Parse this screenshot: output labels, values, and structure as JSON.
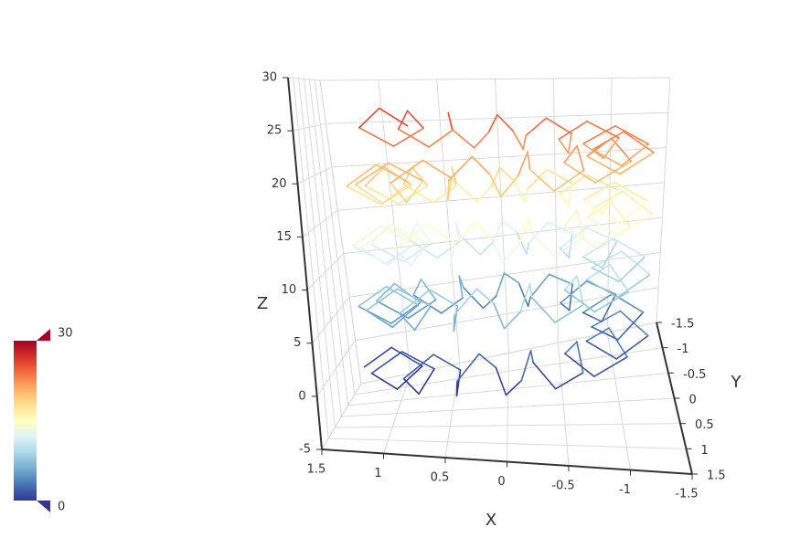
{
  "chart_data": {
    "type": "line3D",
    "xlabel": "X",
    "ylabel": "Y",
    "zlabel": "Z",
    "xlim": [
      -1.5,
      1.5
    ],
    "ylim": [
      -1.5,
      1.5
    ],
    "zlim": [
      -5,
      30
    ],
    "xticks": [
      -1.5,
      -1,
      -0.5,
      0,
      0.5,
      1,
      1.5
    ],
    "yticks": [
      -1.5,
      -1,
      -0.5,
      0,
      0.5,
      1,
      1.5
    ],
    "zticks": [
      -5,
      0,
      5,
      10,
      15,
      20,
      25,
      30
    ],
    "grid": true,
    "visual_map": {
      "min": 0,
      "max": 30,
      "colors": [
        "#313695",
        "#4575b4",
        "#74add1",
        "#abd9e9",
        "#e0f3f8",
        "#ffffbf",
        "#fee090",
        "#fdae61",
        "#f46d43",
        "#d73027",
        "#a50026"
      ]
    },
    "x": [
      1.25,
      0.99,
      0.73,
      0.95,
      1.14,
      0.87,
      0.61,
      0.74,
      0.84,
      0.59,
      0.38,
      0.41,
      0.39,
      0.21,
      0.08,
      0,
      -0.13,
      -0.21,
      -0.23,
      -0.41,
      -0.63,
      -0.59,
      -0.5,
      -0.74,
      -1.01,
      -0.87,
      -0.69,
      -0.95,
      -1.22,
      -0.99,
      -0.75,
      -0.99,
      -1.22,
      -0.95,
      -0.69,
      -0.87,
      -1.01,
      -0.74,
      -0.5,
      -0.59,
      -0.63,
      -0.41,
      -0.23,
      -0.21,
      -0.13,
      0,
      0.08,
      0.21,
      0.39,
      0.41,
      0.38,
      0.59,
      0.84,
      0.74,
      0.61,
      0.87,
      1.14,
      0.95,
      0.73,
      0.99,
      1.25,
      0.99,
      0.73,
      0.95,
      1.14,
      0.87,
      0.61,
      0.74,
      0.84,
      0.59,
      0.38,
      0.41,
      0.39,
      0.21,
      0.08,
      0,
      -0.13,
      -0.21,
      -0.23,
      -0.41,
      -0.63,
      -0.59,
      -0.5,
      -0.74,
      -1.01,
      -0.87,
      -0.69,
      -0.95,
      -1.22,
      -0.99,
      -0.75,
      -0.99,
      -1.22,
      -0.95,
      -0.69,
      -0.87,
      -1.01,
      -0.74,
      -0.5,
      -0.59,
      -0.63,
      -0.41,
      -0.23,
      -0.21,
      -0.13,
      0,
      0.08,
      0.21,
      0.39,
      0.41,
      0.38,
      0.59,
      0.84,
      0.74,
      0.61,
      0.87,
      1.14,
      0.95,
      0.73,
      0.99,
      1.25,
      0.99,
      0.73,
      0.95,
      1.14,
      0.87,
      0.61,
      0.74,
      0.84,
      0.59,
      0.38,
      0.41,
      0.39,
      0.21,
      0.08,
      0,
      -0.13,
      -0.21,
      -0.23,
      -0.41,
      -0.63,
      -0.59,
      -0.5,
      -0.74,
      -1.01,
      -0.87,
      -0.69,
      -0.95,
      -1.22,
      -0.99,
      -0.75,
      -0.99,
      -1.22,
      -0.95,
      -0.69,
      -0.87,
      -1.01,
      -0.74,
      -0.5,
      -0.59,
      -0.63,
      -0.41,
      -0.23,
      -0.21,
      -0.13,
      0,
      0.08,
      0.21,
      0.39,
      0.41,
      0.38,
      0.59,
      0.84,
      0.74,
      0.61,
      0.87,
      1.14,
      0.95,
      0.73,
      0.99,
      1.25,
      0.99,
      0.73,
      0.95,
      1.14,
      0.87,
      0.61,
      0.74,
      0.84,
      0.59,
      0.38,
      0.41,
      0.39,
      0.21,
      0.08,
      0,
      -0.13,
      -0.21,
      -0.23,
      -0.41,
      -0.63,
      -0.59,
      -0.5,
      -0.74,
      -1.01,
      -0.87,
      -0.69,
      -0.95,
      -1.22,
      -0.99,
      -0.75,
      -0.99,
      -1.22,
      -0.95,
      -0.69,
      -0.87,
      -1.01,
      -0.74,
      -0.5,
      -0.59,
      -0.63,
      -0.41,
      -0.23,
      -0.21,
      -0.13,
      0,
      0.08,
      0.21,
      0.39,
      0.41,
      0.38,
      0.59,
      0.84,
      0.74,
      0.61,
      0.87,
      1.14,
      0.95,
      0.73
    ],
    "y": [
      0,
      0.1,
      0.16,
      0.31,
      0.51,
      0.5,
      0.44,
      0.67,
      0.93,
      0.81,
      0.65,
      0.91,
      1.19,
      0.98,
      0.75,
      1,
      1.24,
      0.98,
      0.71,
      0.91,
      1.08,
      0.81,
      0.56,
      0.67,
      0.73,
      0.5,
      0.31,
      0.31,
      0.26,
      0.1,
      0,
      -0.1,
      -0.26,
      -0.31,
      -0.31,
      -0.5,
      -0.73,
      -0.67,
      -0.56,
      -0.81,
      -1.08,
      -0.91,
      -0.71,
      -0.98,
      -1.24,
      -1,
      -0.75,
      -0.98,
      -1.19,
      -0.91,
      -0.65,
      -0.81,
      -0.93,
      -0.67,
      -0.44,
      -0.5,
      -0.51,
      -0.31,
      -0.16,
      -0.1,
      0,
      0.1,
      0.16,
      0.31,
      0.51,
      0.5,
      0.44,
      0.67,
      0.93,
      0.81,
      0.65,
      0.91,
      1.19,
      0.98,
      0.75,
      1,
      1.24,
      0.98,
      0.71,
      0.91,
      1.08,
      0.81,
      0.56,
      0.67,
      0.73,
      0.5,
      0.31,
      0.31,
      0.26,
      0.1,
      0,
      -0.1,
      -0.26,
      -0.31,
      -0.31,
      -0.5,
      -0.73,
      -0.67,
      -0.56,
      -0.81,
      -1.08,
      -0.91,
      -0.71,
      -0.98,
      -1.24,
      -1,
      -0.75,
      -0.98,
      -1.19,
      -0.91,
      -0.65,
      -0.81,
      -0.93,
      -0.67,
      -0.44,
      -0.5,
      -0.51,
      -0.31,
      -0.16,
      -0.1,
      0,
      0.1,
      0.16,
      0.31,
      0.51,
      0.5,
      0.44,
      0.67,
      0.93,
      0.81,
      0.65,
      0.91,
      1.19,
      0.98,
      0.75,
      1,
      1.24,
      0.98,
      0.71,
      0.91,
      1.08,
      0.81,
      0.56,
      0.67,
      0.73,
      0.5,
      0.31,
      0.31,
      0.26,
      0.1,
      0,
      -0.1,
      -0.26,
      -0.31,
      -0.31,
      -0.5,
      -0.73,
      -0.67,
      -0.56,
      -0.81,
      -1.08,
      -0.91,
      -0.71,
      -0.98,
      -1.24,
      -1,
      -0.75,
      -0.98,
      -1.19,
      -0.91,
      -0.65,
      -0.81,
      -0.93,
      -0.67,
      -0.44,
      -0.5,
      -0.51,
      -0.31,
      -0.16,
      -0.1,
      0,
      0.1,
      0.16,
      0.31,
      0.51,
      0.5,
      0.44,
      0.67,
      0.93,
      0.81,
      0.65,
      0.91,
      1.19,
      0.98,
      0.75,
      1,
      1.24,
      0.98,
      0.71,
      0.91,
      1.08,
      0.81,
      0.56,
      0.67,
      0.73,
      0.5,
      0.31,
      0.31,
      0.26,
      0.1,
      0,
      -0.1,
      -0.26,
      -0.31,
      -0.31,
      -0.5,
      -0.73,
      -0.67,
      -0.56,
      -0.81,
      -1.08,
      -0.91,
      -0.71,
      -0.98,
      -1.24,
      -1,
      -0.75,
      -0.98,
      -1.19,
      -0.91,
      -0.65,
      -0.81,
      -0.93,
      -0.67,
      -0.44,
      -0.5,
      -0.51,
      -0.31,
      -0.16
    ],
    "z": [
      0,
      2.1,
      0.2,
      -1.7,
      0.4,
      2.5,
      0.6,
      -1.3,
      0.8,
      2.9,
      1.0,
      -0.8,
      1.3,
      3.4,
      1.5,
      -0.4,
      1.7,
      3.8,
      1.9,
      0.0,
      2.1,
      4.2,
      2.3,
      0.4,
      2.5,
      4.6,
      2.7,
      0.8,
      2.9,
      5.0,
      3.1,
      1.2,
      3.4,
      5.5,
      3.6,
      1.7,
      3.8,
      5.9,
      4.0,
      2.1,
      4.2,
      6.3,
      4.4,
      2.5,
      4.6,
      6.7,
      4.8,
      2.9,
      5.0,
      7.1,
      5.2,
      3.3,
      5.4,
      7.6,
      5.7,
      3.8,
      5.9,
      8.0,
      6.1,
      4.2,
      6.3,
      8.4,
      6.5,
      4.6,
      6.7,
      8.8,
      6.9,
      5.0,
      7.1,
      9.2,
      7.3,
      5.4,
      7.5,
      9.6,
      7.7,
      5.9,
      8.0,
      10.1,
      8.2,
      6.3,
      8.4,
      10.5,
      8.6,
      6.7,
      8.8,
      10.9,
      9.0,
      7.1,
      9.2,
      11.3,
      9.4,
      7.5,
      9.6,
      11.7,
      9.8,
      7.9,
      10.1,
      12.2,
      10.3,
      8.4,
      10.5,
      12.6,
      10.7,
      8.8,
      10.9,
      13.0,
      11.1,
      9.2,
      11.3,
      13.4,
      11.5,
      9.6,
      11.7,
      13.8,
      11.9,
      10.0,
      12.1,
      14.3,
      12.4,
      10.5,
      12.6,
      14.7,
      12.8,
      10.9,
      13.0,
      15.1,
      13.2,
      11.3,
      13.4,
      15.5,
      13.6,
      11.7,
      13.8,
      15.9,
      14.0,
      12.1,
      14.2,
      16.3,
      14.5,
      12.6,
      14.7,
      16.8,
      14.9,
      13.0,
      15.1,
      17.2,
      15.3,
      13.4,
      15.5,
      17.6,
      15.7,
      13.8,
      15.9,
      18.0,
      16.1,
      14.2,
      16.3,
      18.4,
      16.5,
      14.7,
      16.8,
      18.9,
      17.0,
      15.1,
      17.2,
      19.3,
      17.4,
      15.5,
      17.6,
      19.7,
      17.8,
      15.9,
      18.0,
      20.1,
      18.2,
      16.3,
      18.4,
      20.5,
      18.6,
      16.7,
      18.8,
      21.0,
      19.1,
      17.2,
      19.3,
      21.4,
      19.5,
      17.6,
      19.7,
      21.8,
      19.9,
      18.0,
      20.1,
      22.2,
      20.3,
      18.4,
      20.5,
      22.6,
      20.7,
      18.8,
      20.9,
      23.0,
      21.2,
      19.3,
      21.4,
      23.5,
      21.6,
      19.7,
      21.8,
      23.9,
      22.0,
      20.1,
      22.2,
      24.3,
      22.4,
      20.5,
      22.6,
      24.7,
      22.8,
      20.9,
      23.0,
      25.1,
      23.2,
      21.4,
      23.5,
      25.6,
      23.7,
      21.8,
      23.9,
      26.0,
      24.1,
      22.2,
      24.3,
      26.4,
      24.5,
      22.6,
      24.7,
      26.8,
      24.9
    ]
  }
}
